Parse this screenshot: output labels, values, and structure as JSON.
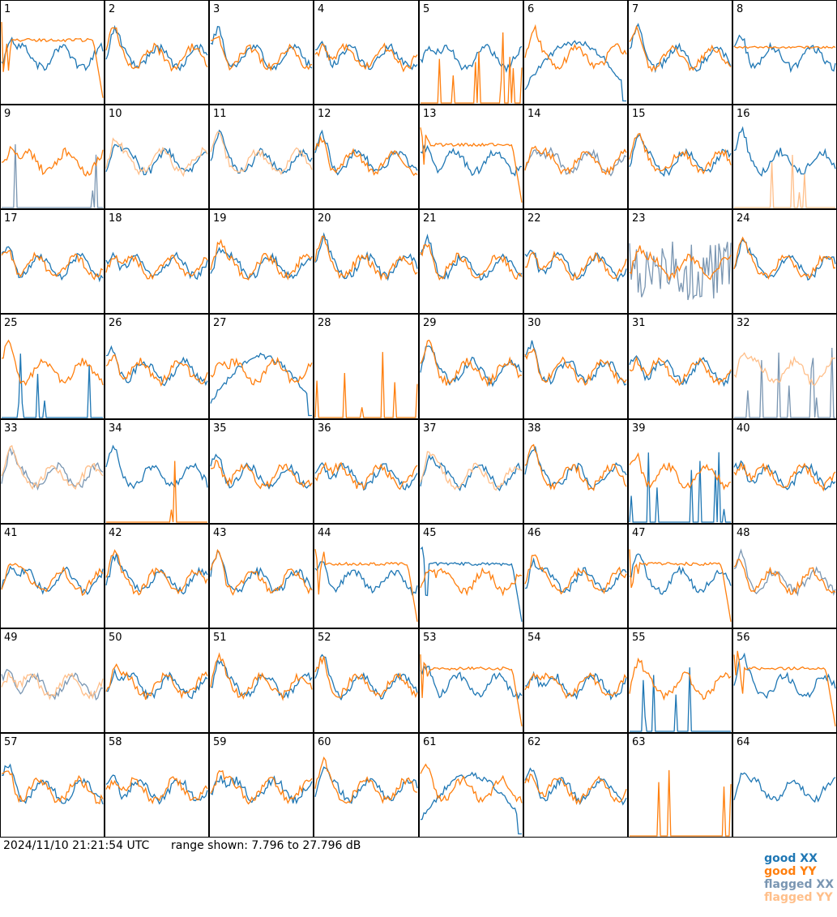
{
  "footer": {
    "timestamp": "2024/11/10 21:21:54 UTC",
    "range_text": "range shown: 7.796 to 27.796 dB"
  },
  "legend": {
    "items": [
      {
        "label": "good XX",
        "color": "#1f77b4"
      },
      {
        "label": "good YY",
        "color": "#ff7f0e"
      },
      {
        "label": "flagged XX",
        "color": "#7a96b2"
      },
      {
        "label": "flagged YY",
        "color": "#ffbf8a"
      }
    ]
  },
  "chart_data": {
    "type": "line",
    "layout": "8x8 grid of antenna panels",
    "ylim_db": [
      7.796,
      27.796
    ],
    "x_points": 60,
    "panels": [
      {
        "id": "1",
        "xx": "good",
        "yy": "good",
        "shape_xx": "normal",
        "shape_yy": "rolloff"
      },
      {
        "id": "2",
        "xx": "good",
        "yy": "good",
        "shape_xx": "normal",
        "shape_yy": "normal"
      },
      {
        "id": "3",
        "xx": "good",
        "yy": "good",
        "shape_xx": "normal",
        "shape_yy": "normal"
      },
      {
        "id": "4",
        "xx": "good",
        "yy": "good",
        "shape_xx": "normal",
        "shape_yy": "normal"
      },
      {
        "id": "5",
        "xx": "good",
        "yy": "good",
        "shape_xx": "normal",
        "shape_yy": "spikes"
      },
      {
        "id": "6",
        "xx": "good",
        "yy": "good",
        "shape_xx": "hump",
        "shape_yy": "normal"
      },
      {
        "id": "7",
        "xx": "good",
        "yy": "good",
        "shape_xx": "normal",
        "shape_yy": "normal"
      },
      {
        "id": "8",
        "xx": "good",
        "yy": "good",
        "shape_xx": "normal",
        "shape_yy": "flat"
      },
      {
        "id": "9",
        "xx": "flagged",
        "yy": "good",
        "shape_xx": "spikes",
        "shape_yy": "normal"
      },
      {
        "id": "10",
        "xx": "good",
        "yy": "flagged",
        "shape_xx": "normal",
        "shape_yy": "normal"
      },
      {
        "id": "11",
        "xx": "good",
        "yy": "flagged",
        "shape_xx": "normal",
        "shape_yy": "normal"
      },
      {
        "id": "12",
        "xx": "good",
        "yy": "good",
        "shape_xx": "normal",
        "shape_yy": "normal"
      },
      {
        "id": "13",
        "xx": "good",
        "yy": "good",
        "shape_xx": "normal",
        "shape_yy": "rolloff"
      },
      {
        "id": "14",
        "xx": "flagged",
        "yy": "good",
        "shape_xx": "normal",
        "shape_yy": "normal"
      },
      {
        "id": "15",
        "xx": "good",
        "yy": "good",
        "shape_xx": "normal",
        "shape_yy": "normal"
      },
      {
        "id": "16",
        "xx": "good",
        "yy": "flagged",
        "shape_xx": "normal",
        "shape_yy": "spikes"
      },
      {
        "id": "17",
        "xx": "good",
        "yy": "good",
        "shape_xx": "normal",
        "shape_yy": "normal"
      },
      {
        "id": "18",
        "xx": "good",
        "yy": "good",
        "shape_xx": "normal",
        "shape_yy": "normal"
      },
      {
        "id": "19",
        "xx": "good",
        "yy": "good",
        "shape_xx": "normal",
        "shape_yy": "normal"
      },
      {
        "id": "20",
        "xx": "good",
        "yy": "good",
        "shape_xx": "normal",
        "shape_yy": "normal"
      },
      {
        "id": "21",
        "xx": "good",
        "yy": "good",
        "shape_xx": "normal",
        "shape_yy": "normal"
      },
      {
        "id": "22",
        "xx": "good",
        "yy": "good",
        "shape_xx": "normal",
        "shape_yy": "normal"
      },
      {
        "id": "23",
        "xx": "flagged",
        "yy": "good",
        "shape_xx": "noisy",
        "shape_yy": "normal"
      },
      {
        "id": "24",
        "xx": "good",
        "yy": "good",
        "shape_xx": "normal",
        "shape_yy": "normal"
      },
      {
        "id": "25",
        "xx": "good",
        "yy": "good",
        "shape_xx": "spikes",
        "shape_yy": "normal"
      },
      {
        "id": "26",
        "xx": "good",
        "yy": "good",
        "shape_xx": "normal",
        "shape_yy": "normal"
      },
      {
        "id": "27",
        "xx": "good",
        "yy": "good",
        "shape_xx": "hump",
        "shape_yy": "normal"
      },
      {
        "id": "28",
        "xx": "good",
        "yy": "good",
        "shape_xx": "none",
        "shape_yy": "spikes"
      },
      {
        "id": "29",
        "xx": "good",
        "yy": "good",
        "shape_xx": "normal",
        "shape_yy": "normal"
      },
      {
        "id": "30",
        "xx": "good",
        "yy": "good",
        "shape_xx": "normal",
        "shape_yy": "normal"
      },
      {
        "id": "31",
        "xx": "good",
        "yy": "good",
        "shape_xx": "normal",
        "shape_yy": "normal"
      },
      {
        "id": "32",
        "xx": "flagged",
        "yy": "flagged",
        "shape_xx": "spikes",
        "shape_yy": "normal"
      },
      {
        "id": "33",
        "xx": "flagged",
        "yy": "flagged",
        "shape_xx": "normal",
        "shape_yy": "normal"
      },
      {
        "id": "34",
        "xx": "good",
        "yy": "good",
        "shape_xx": "normal",
        "shape_yy": "spikes"
      },
      {
        "id": "35",
        "xx": "good",
        "yy": "good",
        "shape_xx": "normal",
        "shape_yy": "normal"
      },
      {
        "id": "36",
        "xx": "good",
        "yy": "good",
        "shape_xx": "normal",
        "shape_yy": "normal"
      },
      {
        "id": "37",
        "xx": "good",
        "yy": "flagged",
        "shape_xx": "normal",
        "shape_yy": "normal"
      },
      {
        "id": "38",
        "xx": "good",
        "yy": "good",
        "shape_xx": "normal",
        "shape_yy": "normal"
      },
      {
        "id": "39",
        "xx": "good",
        "yy": "good",
        "shape_xx": "spikes",
        "shape_yy": "normal"
      },
      {
        "id": "40",
        "xx": "good",
        "yy": "good",
        "shape_xx": "normal",
        "shape_yy": "normal"
      },
      {
        "id": "41",
        "xx": "good",
        "yy": "good",
        "shape_xx": "normal",
        "shape_yy": "normal"
      },
      {
        "id": "42",
        "xx": "good",
        "yy": "good",
        "shape_xx": "normal",
        "shape_yy": "normal"
      },
      {
        "id": "43",
        "xx": "good",
        "yy": "good",
        "shape_xx": "normal",
        "shape_yy": "normal"
      },
      {
        "id": "44",
        "xx": "good",
        "yy": "good",
        "shape_xx": "normal",
        "shape_yy": "rolloff"
      },
      {
        "id": "45",
        "xx": "good",
        "yy": "good",
        "shape_xx": "rolloff",
        "shape_yy": "normal"
      },
      {
        "id": "46",
        "xx": "good",
        "yy": "good",
        "shape_xx": "normal",
        "shape_yy": "normal"
      },
      {
        "id": "47",
        "xx": "good",
        "yy": "good",
        "shape_xx": "normal",
        "shape_yy": "rolloff"
      },
      {
        "id": "48",
        "xx": "flagged",
        "yy": "good",
        "shape_xx": "normal",
        "shape_yy": "normal"
      },
      {
        "id": "49",
        "xx": "flagged",
        "yy": "flagged",
        "shape_xx": "normal",
        "shape_yy": "normal"
      },
      {
        "id": "50",
        "xx": "good",
        "yy": "good",
        "shape_xx": "normal",
        "shape_yy": "normal"
      },
      {
        "id": "51",
        "xx": "good",
        "yy": "good",
        "shape_xx": "normal",
        "shape_yy": "normal"
      },
      {
        "id": "52",
        "xx": "good",
        "yy": "good",
        "shape_xx": "normal",
        "shape_yy": "normal"
      },
      {
        "id": "53",
        "xx": "good",
        "yy": "good",
        "shape_xx": "normal",
        "shape_yy": "rolloff"
      },
      {
        "id": "54",
        "xx": "good",
        "yy": "good",
        "shape_xx": "normal",
        "shape_yy": "normal"
      },
      {
        "id": "55",
        "xx": "good",
        "yy": "good",
        "shape_xx": "spikes",
        "shape_yy": "normal"
      },
      {
        "id": "56",
        "xx": "good",
        "yy": "good",
        "shape_xx": "normal",
        "shape_yy": "rolloff"
      },
      {
        "id": "57",
        "xx": "good",
        "yy": "good",
        "shape_xx": "normal",
        "shape_yy": "normal"
      },
      {
        "id": "58",
        "xx": "good",
        "yy": "good",
        "shape_xx": "normal",
        "shape_yy": "normal"
      },
      {
        "id": "59",
        "xx": "good",
        "yy": "good",
        "shape_xx": "normal",
        "shape_yy": "normal"
      },
      {
        "id": "60",
        "xx": "good",
        "yy": "good",
        "shape_xx": "normal",
        "shape_yy": "normal"
      },
      {
        "id": "61",
        "xx": "good",
        "yy": "good",
        "shape_xx": "hump",
        "shape_yy": "normal"
      },
      {
        "id": "62",
        "xx": "good",
        "yy": "good",
        "shape_xx": "normal",
        "shape_yy": "normal"
      },
      {
        "id": "63",
        "xx": "good",
        "yy": "good",
        "shape_xx": "none",
        "shape_yy": "spikes"
      },
      {
        "id": "64",
        "xx": "good",
        "yy": "good",
        "shape_xx": "normal",
        "shape_yy": "none"
      }
    ]
  }
}
